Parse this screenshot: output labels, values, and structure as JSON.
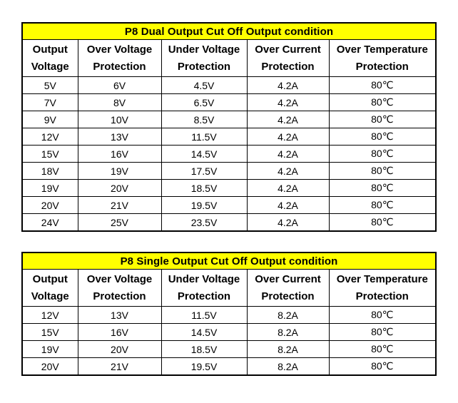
{
  "colors": {
    "title_background": "#FFFF00",
    "border": "#000000",
    "text": "#000000",
    "page_background": "#FFFFFF"
  },
  "tables": [
    {
      "title": "P8 Dual Output Cut Off Output condition",
      "columns": [
        {
          "line1": "Output",
          "line2": "Voltage"
        },
        {
          "line1": "Over Voltage",
          "line2": "Protection"
        },
        {
          "line1": "Under Voltage",
          "line2": "Protection"
        },
        {
          "line1": "Over Current",
          "line2": "Protection"
        },
        {
          "line1": "Over Temperature",
          "line2": "Protection"
        }
      ],
      "rows": [
        [
          "5V",
          "6V",
          "4.5V",
          "4.2A",
          "80℃"
        ],
        [
          "7V",
          "8V",
          "6.5V",
          "4.2A",
          "80℃"
        ],
        [
          "9V",
          "10V",
          "8.5V",
          "4.2A",
          "80℃"
        ],
        [
          "12V",
          "13V",
          "11.5V",
          "4.2A",
          "80℃"
        ],
        [
          "15V",
          "16V",
          "14.5V",
          "4.2A",
          "80℃"
        ],
        [
          "18V",
          "19V",
          "17.5V",
          "4.2A",
          "80℃"
        ],
        [
          "19V",
          "20V",
          "18.5V",
          "4.2A",
          "80℃"
        ],
        [
          "20V",
          "21V",
          "19.5V",
          "4.2A",
          "80℃"
        ],
        [
          "24V",
          "25V",
          "23.5V",
          "4.2A",
          "80℃"
        ]
      ]
    },
    {
      "title": "P8 Single Output Cut Off Output condition",
      "columns": [
        {
          "line1": "Output",
          "line2": "Voltage"
        },
        {
          "line1": "Over Voltage",
          "line2": "Protection"
        },
        {
          "line1": "Under Voltage",
          "line2": "Protection"
        },
        {
          "line1": "Over Current",
          "line2": "Protection"
        },
        {
          "line1": "Over Temperature",
          "line2": "Protection"
        }
      ],
      "rows": [
        [
          "12V",
          "13V",
          "11.5V",
          "8.2A",
          "80℃"
        ],
        [
          "15V",
          "16V",
          "14.5V",
          "8.2A",
          "80℃"
        ],
        [
          "19V",
          "20V",
          "18.5V",
          "8.2A",
          "80℃"
        ],
        [
          "20V",
          "21V",
          "19.5V",
          "8.2A",
          "80℃"
        ]
      ]
    }
  ]
}
